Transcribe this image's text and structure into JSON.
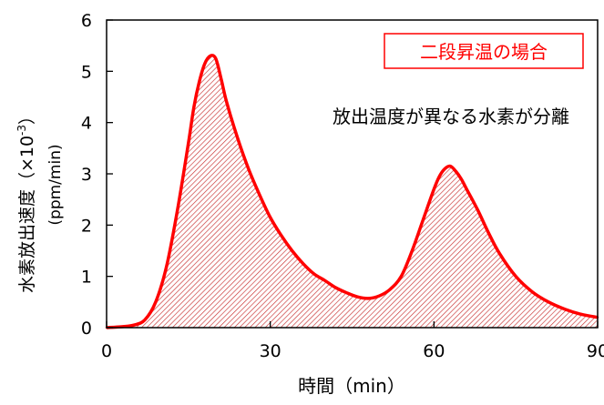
{
  "chart_data": {
    "type": "area",
    "title": "",
    "xlabel": "時間（min）",
    "ylabel_main": "水素放出速度（×10",
    "ylabel_exp": "-3",
    "ylabel_close": "）",
    "ylabel_unit": "(ppm/min)",
    "xlim": [
      0,
      90
    ],
    "ylim": [
      0,
      6
    ],
    "xticks": [
      0,
      30,
      60,
      90
    ],
    "yticks": [
      0,
      1,
      2,
      3,
      4,
      5,
      6
    ],
    "grid": false,
    "legend": "none",
    "series": [
      {
        "line_color": "#ff0000",
        "fill": "hatched-red",
        "x": [
          0,
          3,
          5,
          7,
          9,
          11,
          13,
          15,
          16,
          17,
          18,
          19,
          20,
          21,
          22,
          24,
          26,
          28,
          30,
          32,
          34,
          36,
          38,
          40,
          42,
          44,
          46,
          48,
          50,
          52,
          54,
          56,
          58,
          60,
          61,
          62,
          63,
          64,
          65,
          66,
          68,
          70,
          72,
          75,
          78,
          81,
          84,
          87,
          90
        ],
        "y": [
          0,
          0.02,
          0.05,
          0.15,
          0.5,
          1.2,
          2.3,
          3.6,
          4.3,
          4.8,
          5.15,
          5.3,
          5.25,
          4.85,
          4.4,
          3.7,
          3.1,
          2.6,
          2.15,
          1.8,
          1.5,
          1.25,
          1.05,
          0.92,
          0.78,
          0.68,
          0.6,
          0.57,
          0.62,
          0.75,
          1.0,
          1.5,
          2.1,
          2.7,
          2.95,
          3.1,
          3.15,
          3.05,
          2.9,
          2.7,
          2.3,
          1.85,
          1.45,
          1.0,
          0.7,
          0.5,
          0.36,
          0.26,
          0.2
        ]
      }
    ],
    "annotations": [
      {
        "text": "二段昇温の場合",
        "color": "#ff0000",
        "boxed": true,
        "position": "top-right"
      },
      {
        "text": "放出温度が異なる水素が分離",
        "color": "#000000",
        "boxed": false,
        "position": "upper-right"
      }
    ]
  }
}
